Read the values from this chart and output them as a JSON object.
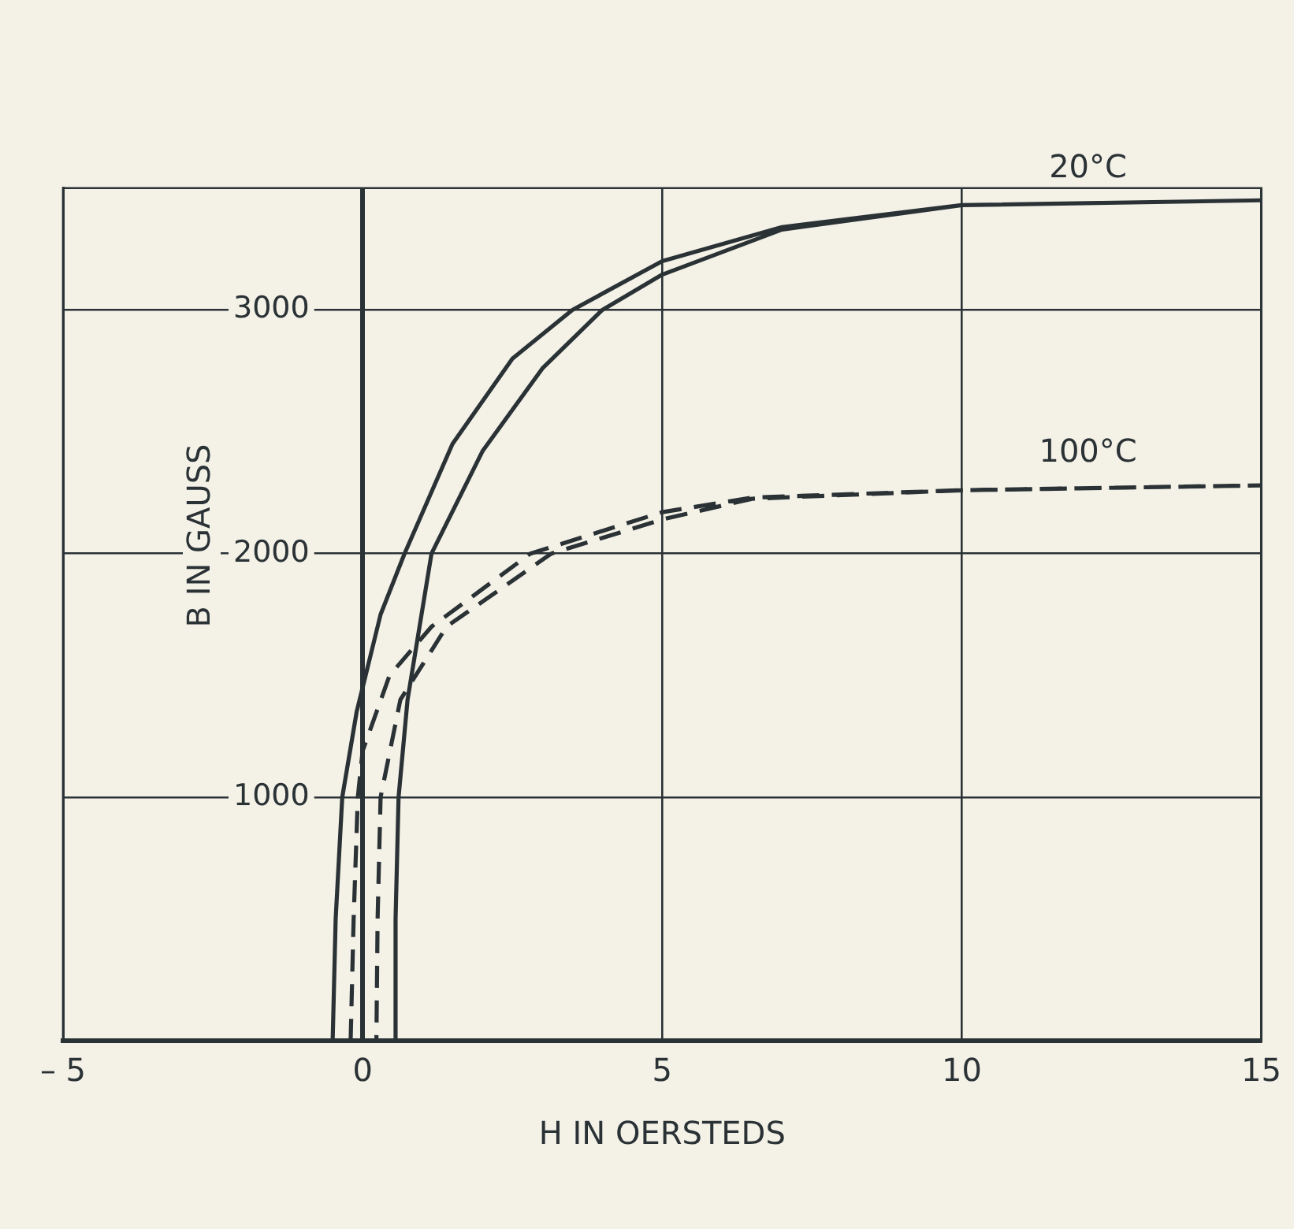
{
  "chart_data": {
    "type": "line",
    "xlabel": "H IN OERSTEDS",
    "ylabel": "B IN GAUSS",
    "xlim": [
      -5,
      15
    ],
    "ylim": [
      0,
      3500
    ],
    "xticks": [
      {
        "value": -5,
        "label": "– 5"
      },
      0,
      5,
      10,
      15
    ],
    "yticks": [
      1000,
      2000,
      3000
    ],
    "grid": true,
    "legend": false,
    "marker": "none",
    "series": [
      {
        "name": "20°C",
        "color": "#2a3236",
        "line_style": "solid",
        "x": [
          -0.5,
          -0.45,
          -0.34,
          -0.1,
          0,
          0.3,
          0.7,
          1.5,
          2.5,
          3.5,
          5,
          7,
          10,
          15,
          10,
          7,
          5,
          4,
          3,
          2,
          1.15,
          0.75,
          0.6,
          0.55,
          0.55
        ],
        "values": [
          0,
          500,
          1000,
          1350,
          1450,
          1750,
          2000,
          2450,
          2800,
          3000,
          3200,
          3340,
          3430,
          3450,
          3430,
          3330,
          3145,
          3000,
          2760,
          2420,
          2000,
          1400,
          1000,
          500,
          0
        ]
      },
      {
        "name": "100°C",
        "color": "#2a3236",
        "line_style": "dashed",
        "x": [
          -0.2,
          -0.15,
          -0.08,
          0,
          0.45,
          1.15,
          2.8,
          5,
          6.5,
          10,
          15,
          10,
          6.5,
          5,
          3.15,
          1.4,
          0.63,
          0.3,
          0.25,
          0.23
        ],
        "values": [
          0,
          500,
          1000,
          1190,
          1500,
          1700,
          2000,
          2170,
          2230,
          2260,
          2280,
          2260,
          2225,
          2140,
          2000,
          1700,
          1400,
          1000,
          500,
          0
        ]
      }
    ]
  }
}
